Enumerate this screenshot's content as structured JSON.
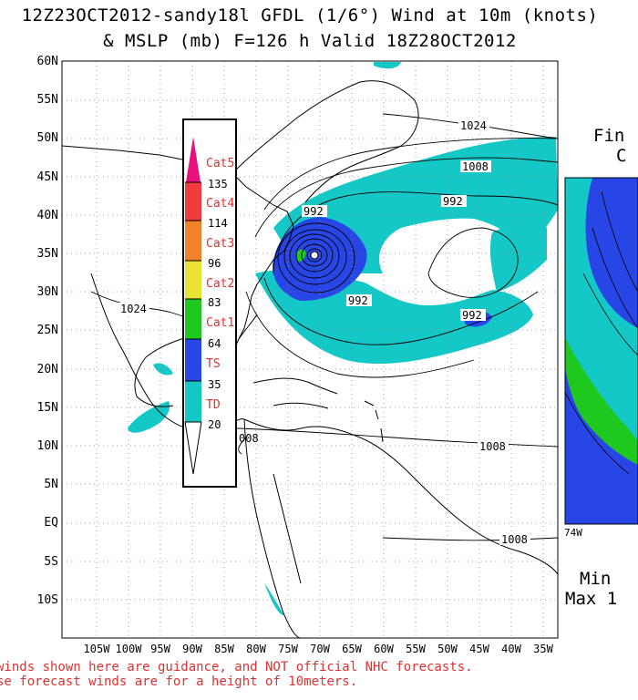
{
  "title": {
    "line1": "12Z23OCT2012-sandy18l GFDL (1/6°) Wind at 10m (knots)",
    "line2": "& MSLP (mb) F=126 h Valid 18Z28OCT2012"
  },
  "lat_labels": [
    "60N",
    "55N",
    "50N",
    "45N",
    "40N",
    "35N",
    "30N",
    "25N",
    "20N",
    "15N",
    "10N",
    "5N",
    "EQ",
    "5S",
    "10S"
  ],
  "lon_labels": [
    "105W",
    "100W",
    "95W",
    "90W",
    "85W",
    "80W",
    "75W",
    "70W",
    "65W",
    "60W",
    "55W",
    "50W",
    "45W",
    "40W",
    "35W"
  ],
  "legend": {
    "categories": [
      {
        "label": "Cat5",
        "color": "#e8107a"
      },
      {
        "label": "Cat4",
        "color": "#f03c3c"
      },
      {
        "label": "Cat3",
        "color": "#f08228"
      },
      {
        "label": "Cat2",
        "color": "#e8e232"
      },
      {
        "label": "Cat1",
        "color": "#1ec81e"
      },
      {
        "label": "TS",
        "color": "#2846e6"
      },
      {
        "label": "TD",
        "color": "#14c8c8"
      }
    ],
    "thresholds": [
      "135",
      "114",
      "96",
      "83",
      "64",
      "35",
      "20"
    ]
  },
  "contour_labels": [
    {
      "text": "1024",
      "pos": "north-atlantic"
    },
    {
      "text": "1008",
      "pos": "north-atlantic-inner"
    },
    {
      "text": "992",
      "pos": "north-atlantic-core"
    },
    {
      "text": "992",
      "pos": "near-center-north"
    },
    {
      "text": "992",
      "pos": "near-center-south"
    },
    {
      "text": "992",
      "pos": "central-atlantic-low"
    },
    {
      "text": "1024",
      "pos": "gulf-of-mexico"
    },
    {
      "text": "1008",
      "pos": "tropical-atlantic"
    },
    {
      "text": "1008",
      "pos": "south-atlantic"
    },
    {
      "text": "008",
      "pos": "caribbean"
    }
  ],
  "inset": {
    "text_top1": "Fin",
    "text_top2": "C",
    "lon_label": "74W",
    "text_bottom1": "Min",
    "text_bottom2": "Max 1"
  },
  "disclaimer": {
    "line1": "winds shown here are guidance, and NOT official NHC forecasts.",
    "line2": "se forecast winds are for a height of 10meters."
  },
  "colors": {
    "td": "#14c8c8",
    "ts": "#2846e6",
    "cat1": "#1ec81e",
    "disclaimer": "#e03030"
  }
}
